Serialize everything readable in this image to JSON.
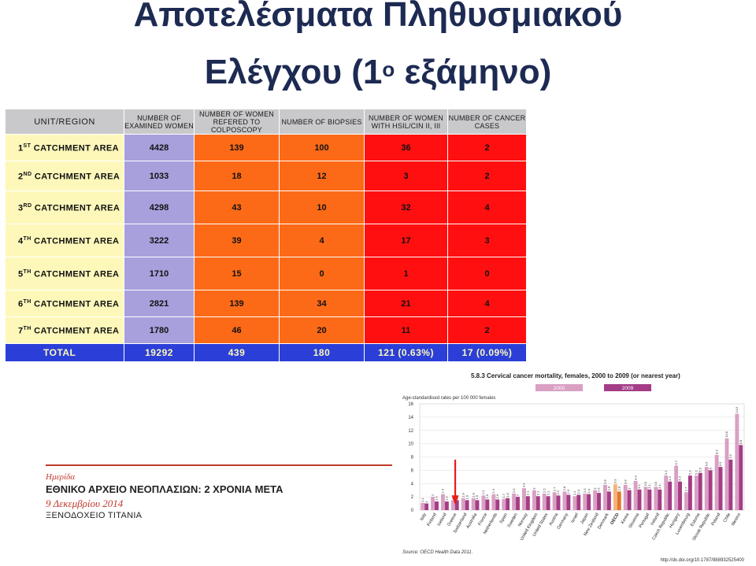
{
  "title": {
    "line1": "Αποτελέσματα Πληθυσμιακού",
    "line2_prefix": "Ελέγχου (1",
    "line2_sup": "ο",
    "line2_suffix": " εξάμηνο)"
  },
  "table": {
    "headers": {
      "unit": "UNIT/REGION",
      "examined": "NUMBER OF EXAMINED WOMEN",
      "colposcopy": "NUMBER OF WOMEN REFERED TO COLPOSCOPY",
      "biopsies": "NUMBER OF BIOPSIES",
      "hsil": "NUMBER OF WOMEN WITH HSIL/CIN II, III",
      "cancer": "NUMBER OF CANCER CASES"
    },
    "rows": [
      {
        "num": "1",
        "sup": "ST",
        "label": "CATCHMENT AREA",
        "examined": "4428",
        "colposcopy": "139",
        "biopsies": "100",
        "hsil": "36",
        "cancer": "2"
      },
      {
        "num": "2",
        "sup": "ND",
        "label": "CATCHMENT AREA",
        "examined": "1033",
        "colposcopy": "18",
        "biopsies": "12",
        "hsil": "3",
        "cancer": "2"
      },
      {
        "num": "3",
        "sup": "RD",
        "label": "CATCHMENT AREA",
        "examined": "4298",
        "colposcopy": "43",
        "biopsies": "10",
        "hsil": "32",
        "cancer": "4"
      },
      {
        "num": "4",
        "sup": "TH",
        "label": "CATCHMENT AREA",
        "examined": "3222",
        "colposcopy": "39",
        "biopsies": "4",
        "hsil": "17",
        "cancer": "3"
      },
      {
        "num": "5",
        "sup": "TH",
        "label": "CATCHMENT AREA",
        "examined": "1710",
        "colposcopy": "15",
        "biopsies": "0",
        "hsil": "1",
        "cancer": "0"
      },
      {
        "num": "6",
        "sup": "TH",
        "label": "CATCHMENT AREA",
        "examined": "2821",
        "colposcopy": "139",
        "biopsies": "34",
        "hsil": "21",
        "cancer": "4"
      },
      {
        "num": "7",
        "sup": "TH",
        "label": "CATCHMENT AREA",
        "examined": "1780",
        "colposcopy": "46",
        "biopsies": "20",
        "hsil": "11",
        "cancer": "2"
      }
    ],
    "total": {
      "label": "TOTAL",
      "examined": "19292",
      "colposcopy": "439",
      "biopsies": "180",
      "hsil": "121 (0.63%)",
      "cancer": "17 (0.09%)"
    }
  },
  "conference": {
    "hmerida": "Ημερίδα",
    "title": "ΕΘΝΙΚΟ ΑΡΧΕΙΟ ΝΕΟΠΛΑΣΙΩΝ: 2 ΧΡΟΝΙΑ ΜΕΤΑ",
    "date": "9 Δεκεμβρίου 2014",
    "venue": "ΞΕΝΟΔΟΧΕΙΟ ΤΙΤΑΝΙΑ"
  },
  "chart_data": {
    "type": "bar",
    "title": "5.8.3  Cervical cancer mortality, females, 2000 to 2009 (or nearest year)",
    "ylabel": "Age-standardised rates per 100 000 females",
    "ylim": [
      0,
      16
    ],
    "yticks": [
      0,
      2,
      4,
      6,
      8,
      10,
      12,
      14,
      16
    ],
    "grid": true,
    "legend": "top",
    "source": "Source:  OECD Health Data 2011.",
    "footer": "http://dx.doi.org/10.1787/888932525400",
    "highlight": "Greece",
    "categories": [
      "Italy",
      "Finland",
      "Iceland",
      "Greece",
      "Switzerland",
      "Australia",
      "France",
      "Netherlands",
      "Spain",
      "Sweden",
      "Norway",
      "United Kingdom",
      "United States",
      "Austria",
      "Germany",
      "Israel",
      "Japan",
      "New Zealand",
      "Denmark",
      "OECD",
      "Korea",
      "Slovenia",
      "Portugal",
      "Ireland",
      "Czech Republic",
      "Hungary",
      "Luxembourg",
      "Estonia",
      "Slovak Republic",
      "Poland",
      "Chile",
      "Mexico"
    ],
    "series": [
      {
        "name": "2000",
        "color": "#d9a0c4",
        "values": [
          1.1,
          2.0,
          2.4,
          1.5,
          1.8,
          1.8,
          2.2,
          2.4,
          1.7,
          2.5,
          3.3,
          3.0,
          2.5,
          2.7,
          2.8,
          2.1,
          2.5,
          3.0,
          3.8,
          3.9,
          3.8,
          4.4,
          3.5,
          3.5,
          5.2,
          6.7,
          2.7,
          5.2,
          6.5,
          8.3,
          10.8,
          14.5
        ]
      },
      {
        "name": "2009",
        "color": "#a43d86",
        "values": [
          1.0,
          1.3,
          1.3,
          1.5,
          1.5,
          1.5,
          1.6,
          1.6,
          1.8,
          2.0,
          2.1,
          2.1,
          2.1,
          2.2,
          2.3,
          2.3,
          2.4,
          2.6,
          2.8,
          2.8,
          3.0,
          3.1,
          3.1,
          3.1,
          4.3,
          4.3,
          5.2,
          5.6,
          6.0,
          6.5,
          7.6,
          9.8
        ]
      }
    ]
  }
}
